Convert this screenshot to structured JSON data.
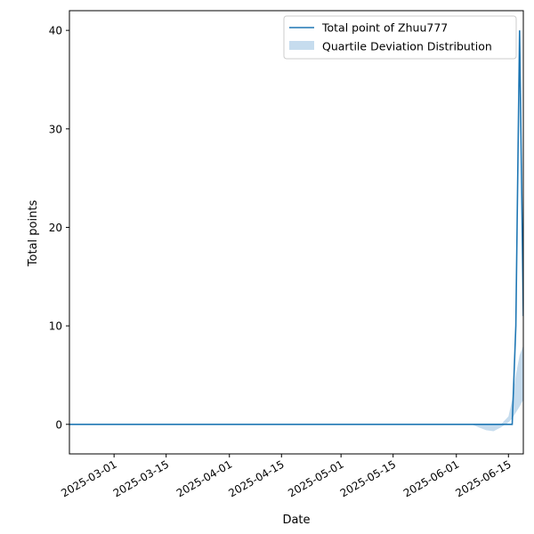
{
  "chart_data": {
    "type": "line",
    "title": "",
    "xlabel": "Date",
    "ylabel": "Total points",
    "x_ticks": [
      "2025-03-01",
      "2025-03-15",
      "2025-04-01",
      "2025-04-15",
      "2025-05-01",
      "2025-05-15",
      "2025-06-01",
      "2025-06-15"
    ],
    "y_ticks": [
      0,
      10,
      20,
      30,
      40
    ],
    "xlim": [
      "2025-02-17",
      "2025-06-19"
    ],
    "ylim": [
      -3,
      42
    ],
    "grid": false,
    "legend_position": "top-right",
    "series": [
      {
        "name": "Total point of Zhuu777",
        "kind": "line",
        "color": "#1f77b4",
        "points": [
          {
            "x": "2025-02-17",
            "y": 0
          },
          {
            "x": "2025-06-16",
            "y": 0
          },
          {
            "x": "2025-06-17",
            "y": 10
          },
          {
            "x": "2025-06-18",
            "y": 40
          },
          {
            "x": "2025-06-19",
            "y": 11
          }
        ]
      },
      {
        "name": "Quartile Deviation Distribution",
        "kind": "band",
        "color": "#c6dcee",
        "points": [
          {
            "x": "2025-06-05",
            "lower": 0,
            "upper": 0
          },
          {
            "x": "2025-06-07",
            "lower": -0.3,
            "upper": 0
          },
          {
            "x": "2025-06-09",
            "lower": -0.6,
            "upper": 0
          },
          {
            "x": "2025-06-11",
            "lower": -0.7,
            "upper": 0
          },
          {
            "x": "2025-06-13",
            "lower": -0.3,
            "upper": 0
          },
          {
            "x": "2025-06-15",
            "lower": 0.2,
            "upper": 0.8
          },
          {
            "x": "2025-06-16",
            "lower": 0.6,
            "upper": 2.5
          },
          {
            "x": "2025-06-17",
            "lower": 1.2,
            "upper": 5
          },
          {
            "x": "2025-06-18",
            "lower": 1.8,
            "upper": 7
          },
          {
            "x": "2025-06-19",
            "lower": 2.5,
            "upper": 8
          }
        ]
      }
    ]
  }
}
